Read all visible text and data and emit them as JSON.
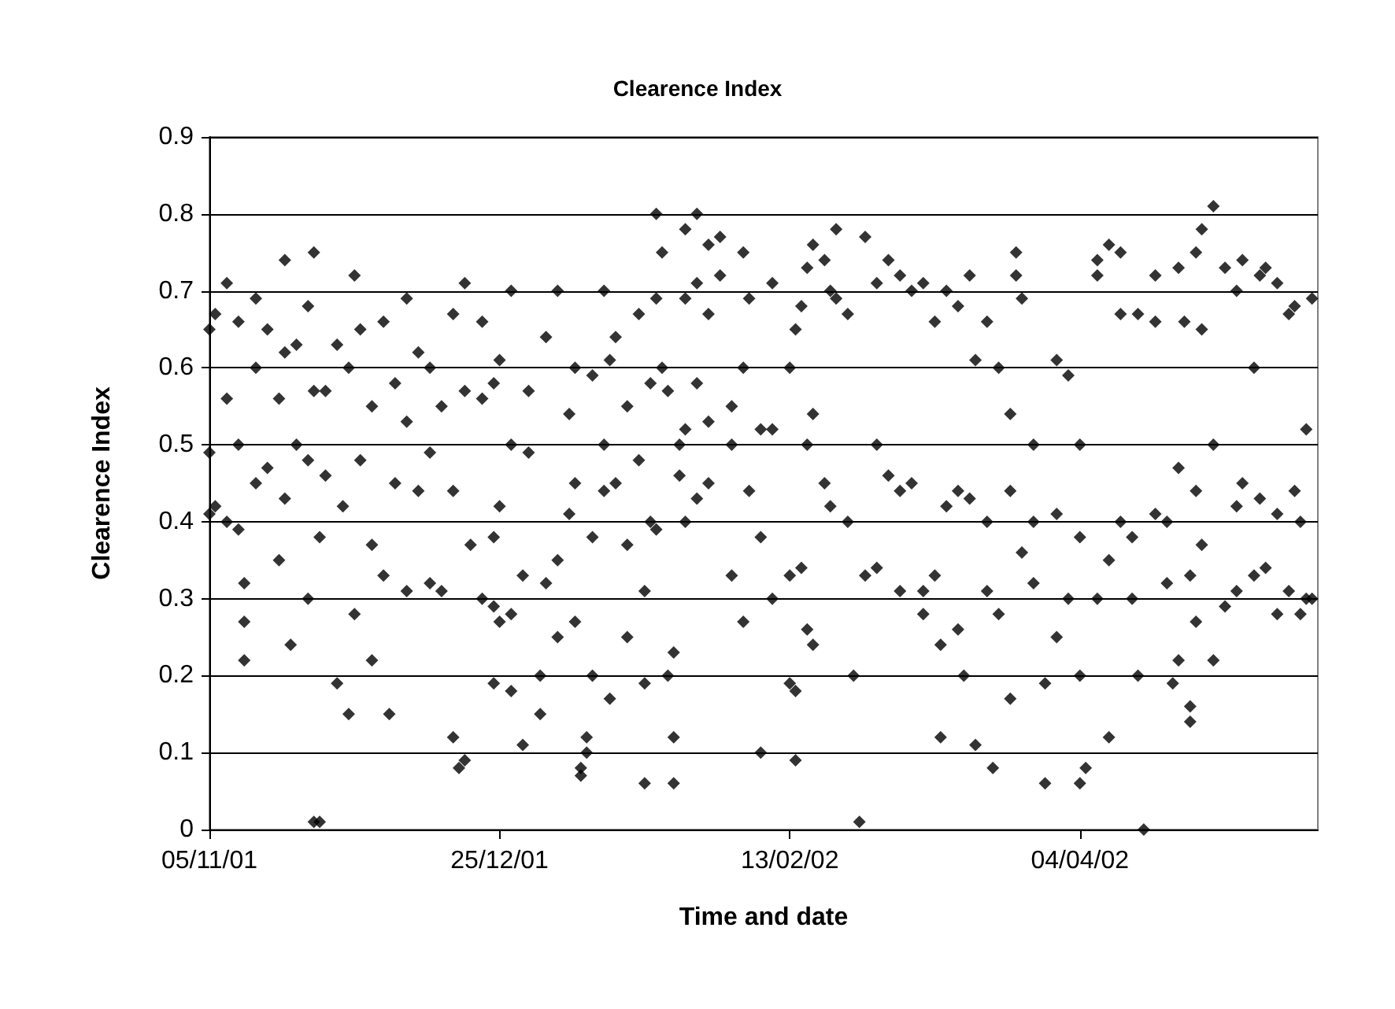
{
  "chart_data": {
    "type": "scatter",
    "title": "Clearence Index",
    "xlabel": "Time and date",
    "ylabel": "Clearence Index",
    "x": [
      "2001-11-05",
      "2001-11-05",
      "2001-11-05",
      "2001-11-06",
      "2001-11-06",
      "2001-11-08",
      "2001-11-08",
      "2001-11-08",
      "2001-11-10",
      "2001-11-10",
      "2001-11-10",
      "2001-11-11",
      "2001-11-11",
      "2001-11-11",
      "2001-11-13",
      "2001-11-13",
      "2001-11-13",
      "2001-11-15",
      "2001-11-15",
      "2001-11-17",
      "2001-11-17",
      "2001-11-18",
      "2001-11-18",
      "2001-11-18",
      "2001-11-19",
      "2001-11-20",
      "2001-11-20",
      "2001-11-22",
      "2001-11-22",
      "2001-11-22",
      "2001-11-23",
      "2001-11-23",
      "2001-11-23",
      "2001-11-24",
      "2001-11-24",
      "2001-11-25",
      "2001-11-25",
      "2001-11-27",
      "2001-11-27",
      "2001-11-28",
      "2001-11-29",
      "2001-11-29",
      "2001-11-30",
      "2001-11-30",
      "2001-12-01",
      "2001-12-01",
      "2001-12-03",
      "2001-12-03",
      "2001-12-03",
      "2001-12-05",
      "2001-12-05",
      "2001-12-06",
      "2001-12-07",
      "2001-12-07",
      "2001-12-09",
      "2001-12-09",
      "2001-12-09",
      "2001-12-11",
      "2001-12-11",
      "2001-12-13",
      "2001-12-13",
      "2001-12-13",
      "2001-12-15",
      "2001-12-15",
      "2001-12-17",
      "2001-12-17",
      "2001-12-17",
      "2001-12-18",
      "2001-12-19",
      "2001-12-19",
      "2001-12-19",
      "2001-12-20",
      "2001-12-22",
      "2001-12-22",
      "2001-12-22",
      "2001-12-24",
      "2001-12-24",
      "2001-12-24",
      "2001-12-24",
      "2001-12-25",
      "2001-12-25",
      "2001-12-25",
      "2001-12-27",
      "2001-12-27",
      "2001-12-27",
      "2001-12-27",
      "2001-12-29",
      "2001-12-29",
      "2001-12-30",
      "2001-12-30",
      "2002-01-01",
      "2002-01-01",
      "2002-01-02",
      "2002-01-02",
      "2002-01-04",
      "2002-01-04",
      "2002-01-04",
      "2002-01-06",
      "2002-01-06",
      "2002-01-07",
      "2002-01-07",
      "2002-01-07",
      "2002-01-08",
      "2002-01-08",
      "2002-01-09",
      "2002-01-09",
      "2002-01-10",
      "2002-01-10",
      "2002-01-10",
      "2002-01-12",
      "2002-01-12",
      "2002-01-12",
      "2002-01-13",
      "2002-01-13",
      "2002-01-14",
      "2002-01-14",
      "2002-01-16",
      "2002-01-16",
      "2002-01-16",
      "2002-01-18",
      "2002-01-18",
      "2002-01-19",
      "2002-01-19",
      "2002-01-19",
      "2002-01-20",
      "2002-01-20",
      "2002-01-21",
      "2002-01-21",
      "2002-01-21",
      "2002-01-22",
      "2002-01-22",
      "2002-01-23",
      "2002-01-23",
      "2002-01-24",
      "2002-01-24",
      "2002-01-24",
      "2002-01-25",
      "2002-01-25",
      "2002-01-26",
      "2002-01-26",
      "2002-01-26",
      "2002-01-26",
      "2002-01-28",
      "2002-01-28",
      "2002-01-28",
      "2002-01-28",
      "2002-01-30",
      "2002-01-30",
      "2002-01-30",
      "2002-01-30",
      "2002-02-01",
      "2002-02-01",
      "2002-02-03",
      "2002-02-03",
      "2002-02-03",
      "2002-02-05",
      "2002-02-05",
      "2002-02-05",
      "2002-02-06",
      "2002-02-06",
      "2002-02-08",
      "2002-02-08",
      "2002-02-08",
      "2002-02-10",
      "2002-02-10",
      "2002-02-10",
      "2002-02-13",
      "2002-02-13",
      "2002-02-13",
      "2002-02-14",
      "2002-02-14",
      "2002-02-14",
      "2002-02-15",
      "2002-02-15",
      "2002-02-16",
      "2002-02-16",
      "2002-02-16",
      "2002-02-17",
      "2002-02-17",
      "2002-02-17",
      "2002-02-19",
      "2002-02-19",
      "2002-02-20",
      "2002-02-20",
      "2002-02-21",
      "2002-02-21",
      "2002-02-23",
      "2002-02-23",
      "2002-02-24",
      "2002-02-25",
      "2002-02-26",
      "2002-02-26",
      "2002-02-28",
      "2002-02-28",
      "2002-02-28",
      "2002-03-02",
      "2002-03-02",
      "2002-03-04",
      "2002-03-04",
      "2002-03-04",
      "2002-03-06",
      "2002-03-06",
      "2002-03-08",
      "2002-03-08",
      "2002-03-08",
      "2002-03-10",
      "2002-03-10",
      "2002-03-11",
      "2002-03-11",
      "2002-03-12",
      "2002-03-12",
      "2002-03-14",
      "2002-03-14",
      "2002-03-14",
      "2002-03-15",
      "2002-03-16",
      "2002-03-16",
      "2002-03-17",
      "2002-03-17",
      "2002-03-19",
      "2002-03-19",
      "2002-03-19",
      "2002-03-20",
      "2002-03-21",
      "2002-03-21",
      "2002-03-23",
      "2002-03-23",
      "2002-03-23",
      "2002-03-24",
      "2002-03-24",
      "2002-03-25",
      "2002-03-25",
      "2002-03-27",
      "2002-03-27",
      "2002-03-27",
      "2002-03-29",
      "2002-03-29",
      "2002-03-31",
      "2002-03-31",
      "2002-03-31",
      "2002-04-02",
      "2002-04-02",
      "2002-04-04",
      "2002-04-04",
      "2002-04-04",
      "2002-04-04",
      "2002-04-05",
      "2002-04-07",
      "2002-04-07",
      "2002-04-07",
      "2002-04-09",
      "2002-04-09",
      "2002-04-09",
      "2002-04-11",
      "2002-04-11",
      "2002-04-11",
      "2002-04-13",
      "2002-04-13",
      "2002-04-14",
      "2002-04-14",
      "2002-04-15",
      "2002-04-17",
      "2002-04-17",
      "2002-04-17",
      "2002-04-19",
      "2002-04-19",
      "2002-04-20",
      "2002-04-21",
      "2002-04-21",
      "2002-04-21",
      "2002-04-22",
      "2002-04-23",
      "2002-04-23",
      "2002-04-23",
      "2002-04-24",
      "2002-04-24",
      "2002-04-24",
      "2002-04-25",
      "2002-04-25",
      "2002-04-25",
      "2002-04-27",
      "2002-04-27",
      "2002-04-27",
      "2002-04-29",
      "2002-04-29",
      "2002-05-01",
      "2002-05-01",
      "2002-05-01",
      "2002-05-02",
      "2002-05-02",
      "2002-05-04",
      "2002-05-04",
      "2002-05-05",
      "2002-05-05",
      "2002-05-06",
      "2002-05-06",
      "2002-05-08",
      "2002-05-08",
      "2002-05-08",
      "2002-05-10",
      "2002-05-10",
      "2002-05-11",
      "2002-05-11",
      "2002-05-12",
      "2002-05-12",
      "2002-05-13",
      "2002-05-13",
      "2002-05-14",
      "2002-05-14"
    ],
    "values": [
      0.65,
      0.41,
      0.49,
      0.67,
      0.42,
      0.71,
      0.56,
      0.4,
      0.66,
      0.5,
      0.39,
      0.32,
      0.22,
      0.27,
      0.69,
      0.45,
      0.6,
      0.65,
      0.47,
      0.56,
      0.35,
      0.74,
      0.62,
      0.43,
      0.24,
      0.63,
      0.5,
      0.3,
      0.48,
      0.68,
      0.75,
      0.57,
      0.01,
      0.38,
      0.01,
      0.57,
      0.46,
      0.19,
      0.63,
      0.42,
      0.15,
      0.6,
      0.72,
      0.28,
      0.65,
      0.48,
      0.55,
      0.37,
      0.22,
      0.66,
      0.33,
      0.15,
      0.58,
      0.45,
      0.69,
      0.53,
      0.31,
      0.62,
      0.44,
      0.6,
      0.49,
      0.32,
      0.55,
      0.31,
      0.67,
      0.12,
      0.44,
      0.08,
      0.71,
      0.57,
      0.09,
      0.37,
      0.66,
      0.56,
      0.3,
      0.38,
      0.29,
      0.58,
      0.19,
      0.61,
      0.42,
      0.27,
      0.7,
      0.5,
      0.28,
      0.18,
      0.33,
      0.11,
      0.57,
      0.49,
      0.2,
      0.15,
      0.64,
      0.32,
      0.35,
      0.7,
      0.25,
      0.54,
      0.41,
      0.6,
      0.45,
      0.27,
      0.08,
      0.07,
      0.12,
      0.1,
      0.59,
      0.38,
      0.2,
      0.7,
      0.5,
      0.44,
      0.61,
      0.17,
      0.64,
      0.45,
      0.55,
      0.37,
      0.25,
      0.67,
      0.48,
      0.31,
      0.19,
      0.06,
      0.4,
      0.58,
      0.8,
      0.69,
      0.39,
      0.75,
      0.6,
      0.57,
      0.2,
      0.23,
      0.12,
      0.06,
      0.5,
      0.46,
      0.78,
      0.69,
      0.52,
      0.4,
      0.8,
      0.71,
      0.58,
      0.43,
      0.76,
      0.67,
      0.53,
      0.45,
      0.77,
      0.72,
      0.55,
      0.5,
      0.33,
      0.75,
      0.6,
      0.27,
      0.69,
      0.44,
      0.52,
      0.38,
      0.1,
      0.71,
      0.52,
      0.3,
      0.6,
      0.19,
      0.33,
      0.65,
      0.18,
      0.09,
      0.68,
      0.34,
      0.73,
      0.5,
      0.26,
      0.76,
      0.54,
      0.24,
      0.74,
      0.45,
      0.7,
      0.42,
      0.78,
      0.69,
      0.67,
      0.4,
      0.2,
      0.01,
      0.77,
      0.33,
      0.71,
      0.34,
      0.5,
      0.74,
      0.46,
      0.72,
      0.44,
      0.31,
      0.7,
      0.45,
      0.71,
      0.31,
      0.28,
      0.66,
      0.33,
      0.12,
      0.24,
      0.7,
      0.42,
      0.68,
      0.44,
      0.26,
      0.2,
      0.72,
      0.43,
      0.61,
      0.11,
      0.66,
      0.4,
      0.31,
      0.08,
      0.6,
      0.28,
      0.54,
      0.44,
      0.17,
      0.75,
      0.72,
      0.69,
      0.36,
      0.5,
      0.4,
      0.32,
      0.19,
      0.06,
      0.61,
      0.41,
      0.25,
      0.59,
      0.3,
      0.5,
      0.38,
      0.2,
      0.06,
      0.08,
      0.74,
      0.72,
      0.3,
      0.76,
      0.35,
      0.12,
      0.75,
      0.67,
      0.4,
      0.38,
      0.3,
      0.67,
      0.2,
      0.0,
      0.72,
      0.66,
      0.41,
      0.4,
      0.32,
      0.19,
      0.73,
      0.47,
      0.22,
      0.66,
      0.16,
      0.14,
      0.33,
      0.75,
      0.44,
      0.27,
      0.78,
      0.65,
      0.37,
      0.81,
      0.5,
      0.22,
      0.73,
      0.29,
      0.7,
      0.42,
      0.31,
      0.74,
      0.45,
      0.6,
      0.33,
      0.72,
      0.43,
      0.73,
      0.34,
      0.71,
      0.41,
      0.28,
      0.67,
      0.31,
      0.68,
      0.44,
      0.4,
      0.28,
      0.52,
      0.3,
      0.69,
      0.3
    ],
    "color": "#000000",
    "marker": "diamond",
    "grid": "y",
    "xlim": [
      "2001-11-05",
      "2002-05-15"
    ],
    "xticks": [
      {
        "value": "2001-11-05",
        "label": "05/11/01"
      },
      {
        "value": "2001-12-25",
        "label": "25/12/01"
      },
      {
        "value": "2002-02-13",
        "label": "13/02/02"
      },
      {
        "value": "2002-04-04",
        "label": "04/04/02"
      }
    ],
    "ylim": [
      0,
      0.9
    ],
    "yticks": [
      0,
      0.1,
      0.2,
      0.3,
      0.4,
      0.5,
      0.6,
      0.7,
      0.8,
      0.9
    ]
  }
}
